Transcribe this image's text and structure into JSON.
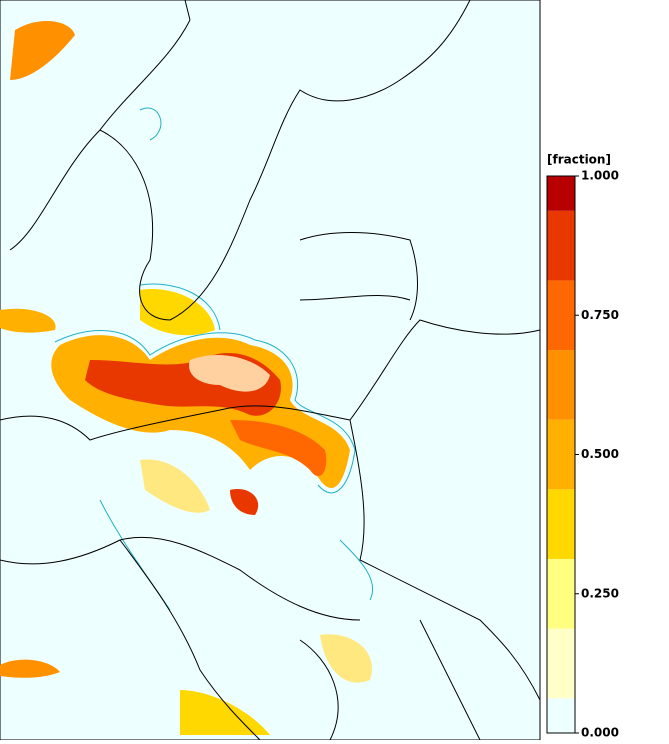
{
  "colorbar": {
    "title": "[fraction]",
    "lim": [
      0,
      1
    ],
    "levels": [
      0,
      0.0625,
      0.1875,
      0.3125,
      0.4375,
      0.5625,
      0.6875,
      0.8125,
      0.9375,
      1
    ],
    "colors": [
      "#eeffff",
      "#ffffc8",
      "#ffff80",
      "#ffd800",
      "#ffb000",
      "#ff9000",
      "#ff6800",
      "#e83800",
      "#b80000"
    ],
    "ticks": [
      {
        "value": 0,
        "label": "0.000"
      },
      {
        "value": 0.25,
        "label": "0.250"
      },
      {
        "value": 0.5,
        "label": "0.500"
      },
      {
        "value": 0.75,
        "label": "0.750"
      },
      {
        "value": 1,
        "label": "1.000"
      }
    ]
  }
}
